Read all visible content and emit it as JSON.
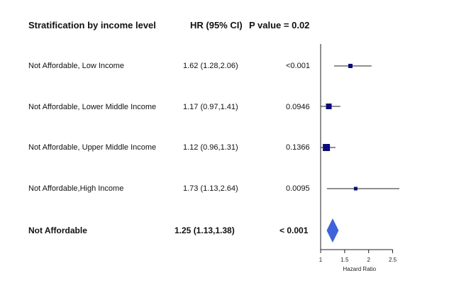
{
  "headers": {
    "stratification": "Stratification by income level",
    "hr": "HR (95% CI)",
    "pvalue": "P value = 0.02"
  },
  "rows": [
    {
      "label": "Not Affordable, Low Income",
      "hr_text": "1.62 (1.28,2.06)",
      "p_text": "<0.001"
    },
    {
      "label": "Not Affordable, Lower Middle Income",
      "hr_text": "1.17 (0.97,1.41)",
      "p_text": "0.0946"
    },
    {
      "label": "Not Affordable, Upper Middle Income",
      "hr_text": "1.12 (0.96,1.31)",
      "p_text": "0.1366"
    },
    {
      "label": "Not Affordable,High Income",
      "hr_text": "1.73 (1.13,2.64)",
      "p_text": "0.0095"
    }
  ],
  "summary": {
    "label": "Not Affordable",
    "hr_text": "1.25 (1.13,1.38)",
    "p_text": "< 0.001"
  },
  "chart_data": {
    "type": "forest",
    "xlabel": "Hazard Ratio",
    "xlim": [
      1.0,
      2.64
    ],
    "ticks": [
      1,
      1.5,
      2,
      2.5
    ],
    "tick_labels": [
      "1",
      "1.5",
      "2",
      "2.5"
    ],
    "reference_line": 1,
    "estimates": [
      {
        "hr": 1.62,
        "lo": 1.28,
        "hi": 2.06
      },
      {
        "hr": 1.17,
        "lo": 0.97,
        "hi": 1.41
      },
      {
        "hr": 1.12,
        "lo": 0.96,
        "hi": 1.31
      },
      {
        "hr": 1.73,
        "lo": 1.13,
        "hi": 2.64
      }
    ],
    "pooled": {
      "hr": 1.25,
      "lo": 1.13,
      "hi": 1.38
    },
    "colors": {
      "point": "#0b0b7a",
      "diamond": "#3f63d8",
      "line": "#222222"
    }
  }
}
